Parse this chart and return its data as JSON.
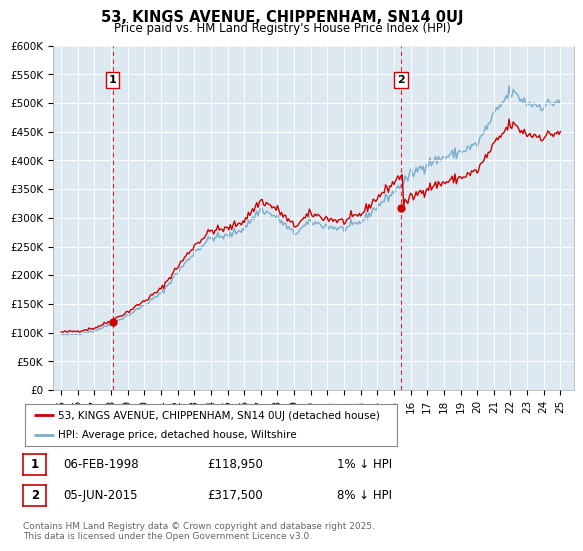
{
  "title": "53, KINGS AVENUE, CHIPPENHAM, SN14 0UJ",
  "subtitle": "Price paid vs. HM Land Registry's House Price Index (HPI)",
  "ylabel_ticks": [
    "£0",
    "£50K",
    "£100K",
    "£150K",
    "£200K",
    "£250K",
    "£300K",
    "£350K",
    "£400K",
    "£450K",
    "£500K",
    "£550K",
    "£600K"
  ],
  "ylim": [
    0,
    600000
  ],
  "ytick_vals": [
    0,
    50000,
    100000,
    150000,
    200000,
    250000,
    300000,
    350000,
    400000,
    450000,
    500000,
    550000,
    600000
  ],
  "legend_line1": "53, KINGS AVENUE, CHIPPENHAM, SN14 0UJ (detached house)",
  "legend_line2": "HPI: Average price, detached house, Wiltshire",
  "line1_color": "#cc0000",
  "line2_color": "#7aadcc",
  "point1_date_label": "1",
  "point2_date_label": "2",
  "point1_date": "06-FEB-1998",
  "point1_price": "£118,950",
  "point1_pct": "1% ↓ HPI",
  "point2_date": "05-JUN-2015",
  "point2_price": "£317,500",
  "point2_pct": "8% ↓ HPI",
  "point1_x": 1998.09,
  "point1_y": 118950,
  "point2_x": 2015.42,
  "point2_y": 317500,
  "vline1_x": 1998.09,
  "vline2_x": 2015.42,
  "background_color": "#ffffff",
  "plot_bg_color": "#dde8f0",
  "grid_color": "#ffffff",
  "footer": "Contains HM Land Registry data © Crown copyright and database right 2025.\nThis data is licensed under the Open Government Licence v3.0.",
  "xlim": [
    1994.5,
    2025.8
  ],
  "xtick_years": [
    1995,
    1996,
    1997,
    1998,
    1999,
    2000,
    2001,
    2002,
    2003,
    2004,
    2005,
    2006,
    2007,
    2008,
    2009,
    2010,
    2011,
    2012,
    2013,
    2014,
    2015,
    2016,
    2017,
    2018,
    2019,
    2020,
    2021,
    2022,
    2023,
    2024,
    2025
  ]
}
